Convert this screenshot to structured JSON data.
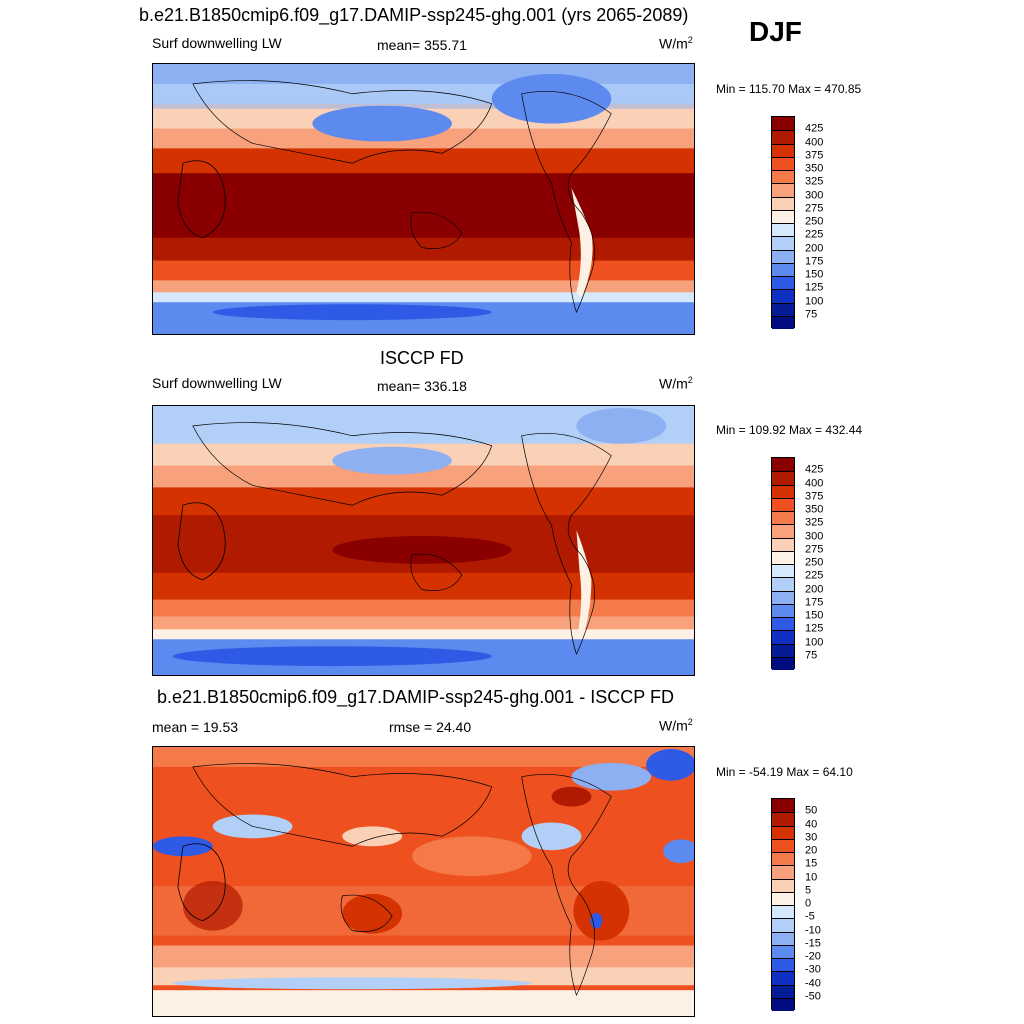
{
  "season": "DJF",
  "units": "W/m",
  "units_sup": "2",
  "panels": [
    {
      "title": "b.e21.B1850cmip6.f09_g17.DAMIP-ssp245-ghg.001 (yrs 2065-2089)",
      "left": "Surf downwelling LW",
      "center": "mean= 355.71",
      "minmax": "Min = 115.70 Max = 470.85",
      "levels": [
        "425",
        "400",
        "375",
        "350",
        "325",
        "300",
        "275",
        "250",
        "225",
        "200",
        "175",
        "150",
        "125",
        "100",
        "75"
      ]
    },
    {
      "title": "ISCCP FD",
      "left": "Surf downwelling LW",
      "center": "mean= 336.18",
      "minmax": "Min = 109.92 Max = 432.44",
      "levels": [
        "425",
        "400",
        "375",
        "350",
        "325",
        "300",
        "275",
        "250",
        "225",
        "200",
        "175",
        "150",
        "125",
        "100",
        "75"
      ]
    },
    {
      "title": "b.e21.B1850cmip6.f09_g17.DAMIP-ssp245-ghg.001 - ISCCP FD",
      "left": "mean =  19.53",
      "center": "rmse =  24.40",
      "minmax": "Min = -54.19 Max =  64.10",
      "levels": [
        "50",
        "40",
        "30",
        "20",
        "15",
        "10",
        "5",
        "0",
        "-5",
        "-10",
        "-15",
        "-20",
        "-30",
        "-40",
        "-50"
      ]
    }
  ],
  "colors": {
    "scale": [
      "#8a0000",
      "#b01a00",
      "#d43200",
      "#ee5020",
      "#f47a4a",
      "#f7a27c",
      "#fad0b6",
      "#fdf0e4",
      "#d6e8fb",
      "#b2d0f7",
      "#8cb0f2",
      "#5c8aee",
      "#2e5ae6",
      "#1030c4",
      "#061c96",
      "#000c80"
    ]
  }
}
